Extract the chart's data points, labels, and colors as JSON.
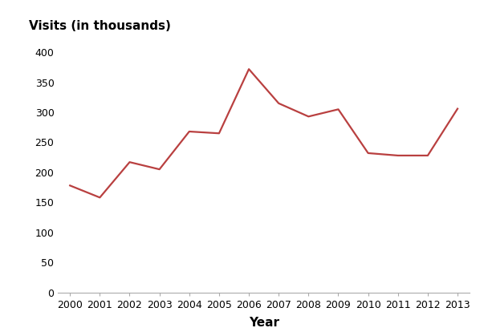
{
  "years": [
    2000,
    2001,
    2002,
    2003,
    2004,
    2005,
    2006,
    2007,
    2008,
    2009,
    2010,
    2011,
    2012,
    2013
  ],
  "values": [
    178,
    158,
    217,
    205,
    268,
    265,
    372,
    315,
    293,
    305,
    232,
    228,
    228,
    306
  ],
  "line_color": "#b94040",
  "line_width": 1.6,
  "ylabel": "Visits (in thousands)",
  "xlabel": "Year",
  "ylim": [
    0,
    420
  ],
  "yticks": [
    0,
    50,
    100,
    150,
    200,
    250,
    300,
    350,
    400
  ],
  "xlim": [
    1999.6,
    2013.4
  ],
  "background_color": "#ffffff",
  "ylabel_fontsize": 11,
  "xlabel_fontsize": 11,
  "tick_fontsize": 9
}
